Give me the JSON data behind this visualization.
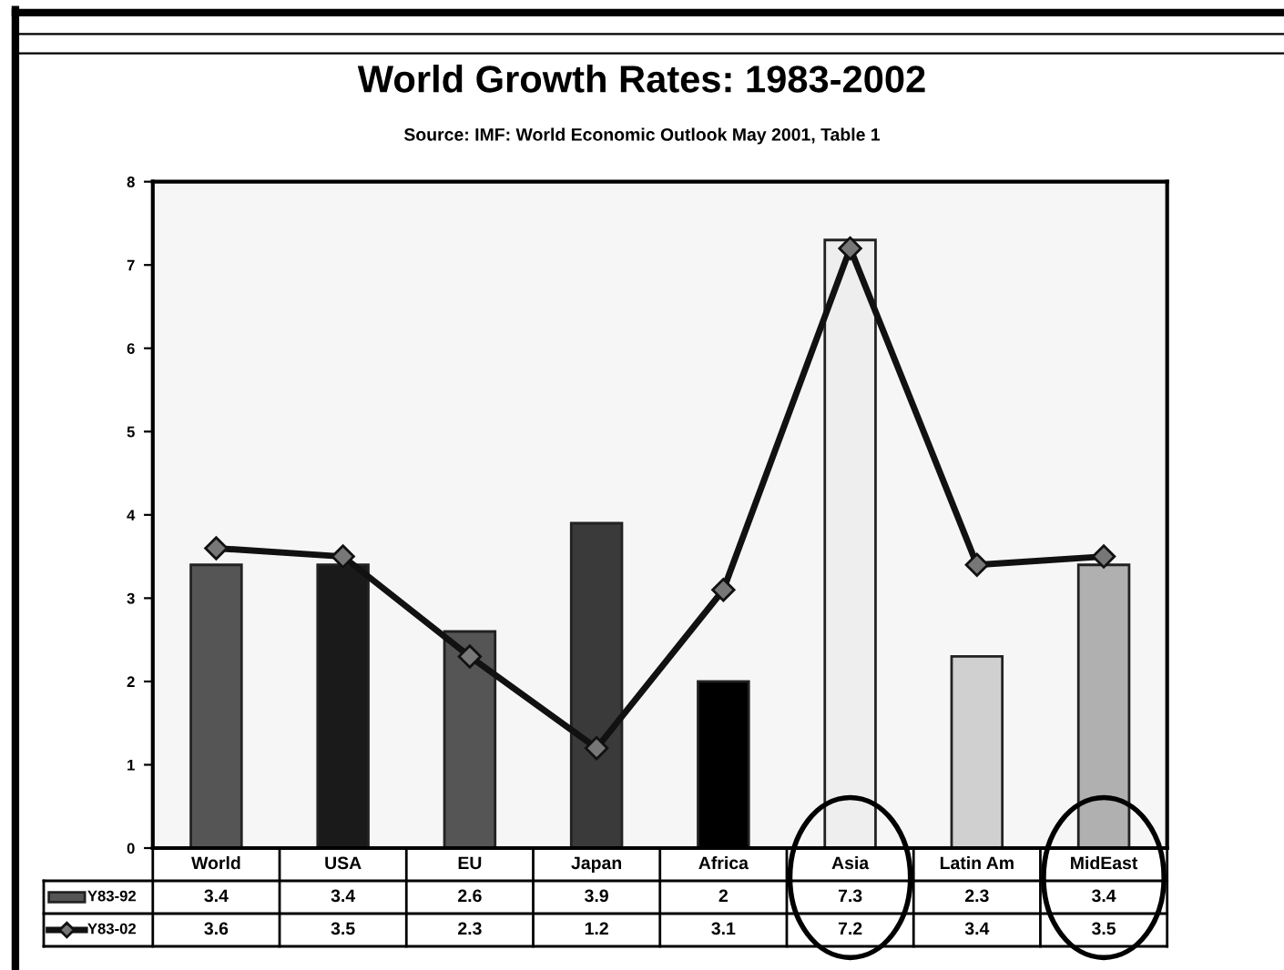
{
  "chart_data": {
    "type": "bar",
    "title": "World Growth Rates: 1983-2002",
    "subtitle": "Source: IMF: World Economic Outlook May 2001, Table 1",
    "categories": [
      "World",
      "USA",
      "EU",
      "Japan",
      "Africa",
      "Asia",
      "Latin Am",
      "MidEast"
    ],
    "series": [
      {
        "name": "Y83-92",
        "color": "#555555",
        "colors": [
          "#555555",
          "#1a1a1a",
          "#555555",
          "#3a3a3a",
          "#000000",
          "#eeeeee",
          "#d0d0d0",
          "#b0b0b0"
        ],
        "values": [
          3.4,
          3.4,
          2.6,
          3.9,
          2,
          7.3,
          2.3,
          3.4
        ]
      },
      {
        "name": "Y83-02",
        "type": "line",
        "color": "#111111",
        "marker": "diamond",
        "values": [
          3.6,
          3.5,
          2.3,
          1.2,
          3.1,
          7.2,
          3.4,
          3.5
        ]
      }
    ],
    "ylim": [
      0,
      8
    ],
    "yticks": [
      0,
      1,
      2,
      3,
      4,
      5,
      6,
      7,
      8
    ],
    "grid": false,
    "legend": "bottom",
    "data_labels": true
  }
}
